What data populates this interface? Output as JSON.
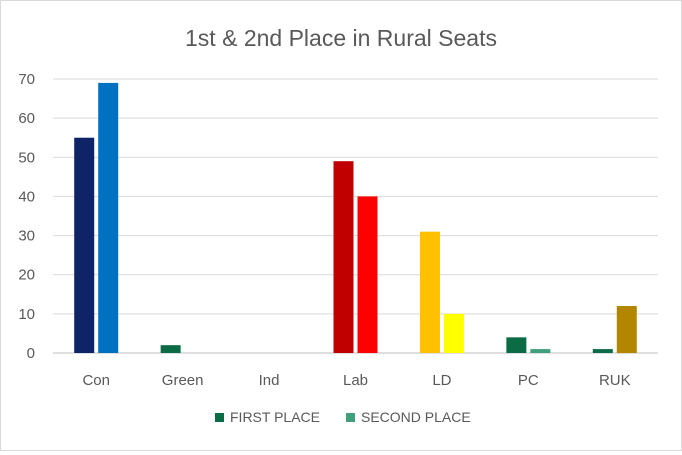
{
  "chart_data": {
    "type": "bar",
    "title": "1st & 2nd Place in Rural Seats",
    "xlabel": "",
    "ylabel": "",
    "categories": [
      "Con",
      "Green",
      "Ind",
      "Lab",
      "LD",
      "PC",
      "RUK"
    ],
    "ylim": [
      0,
      70
    ],
    "yticks": [
      0,
      10,
      20,
      30,
      40,
      50,
      60,
      70
    ],
    "grid": true,
    "legend_position": "bottom",
    "series": [
      {
        "name": "FIRST PLACE",
        "legend_color": "#0b6b45",
        "values": [
          55,
          2,
          0,
          49,
          31,
          4,
          1
        ],
        "colors": [
          "#0f2466",
          "#0b6b45",
          "#0b6b45",
          "#c00000",
          "#ffc000",
          "#0b6b45",
          "#0b6b45"
        ]
      },
      {
        "name": "SECOND PLACE",
        "legend_color": "#3fa07a",
        "values": [
          69,
          0,
          0,
          40,
          10,
          1,
          12
        ],
        "colors": [
          "#0070c0",
          "#3fa07a",
          "#3fa07a",
          "#ff0000",
          "#ffff00",
          "#3fa07a",
          "#b38600"
        ]
      }
    ]
  }
}
